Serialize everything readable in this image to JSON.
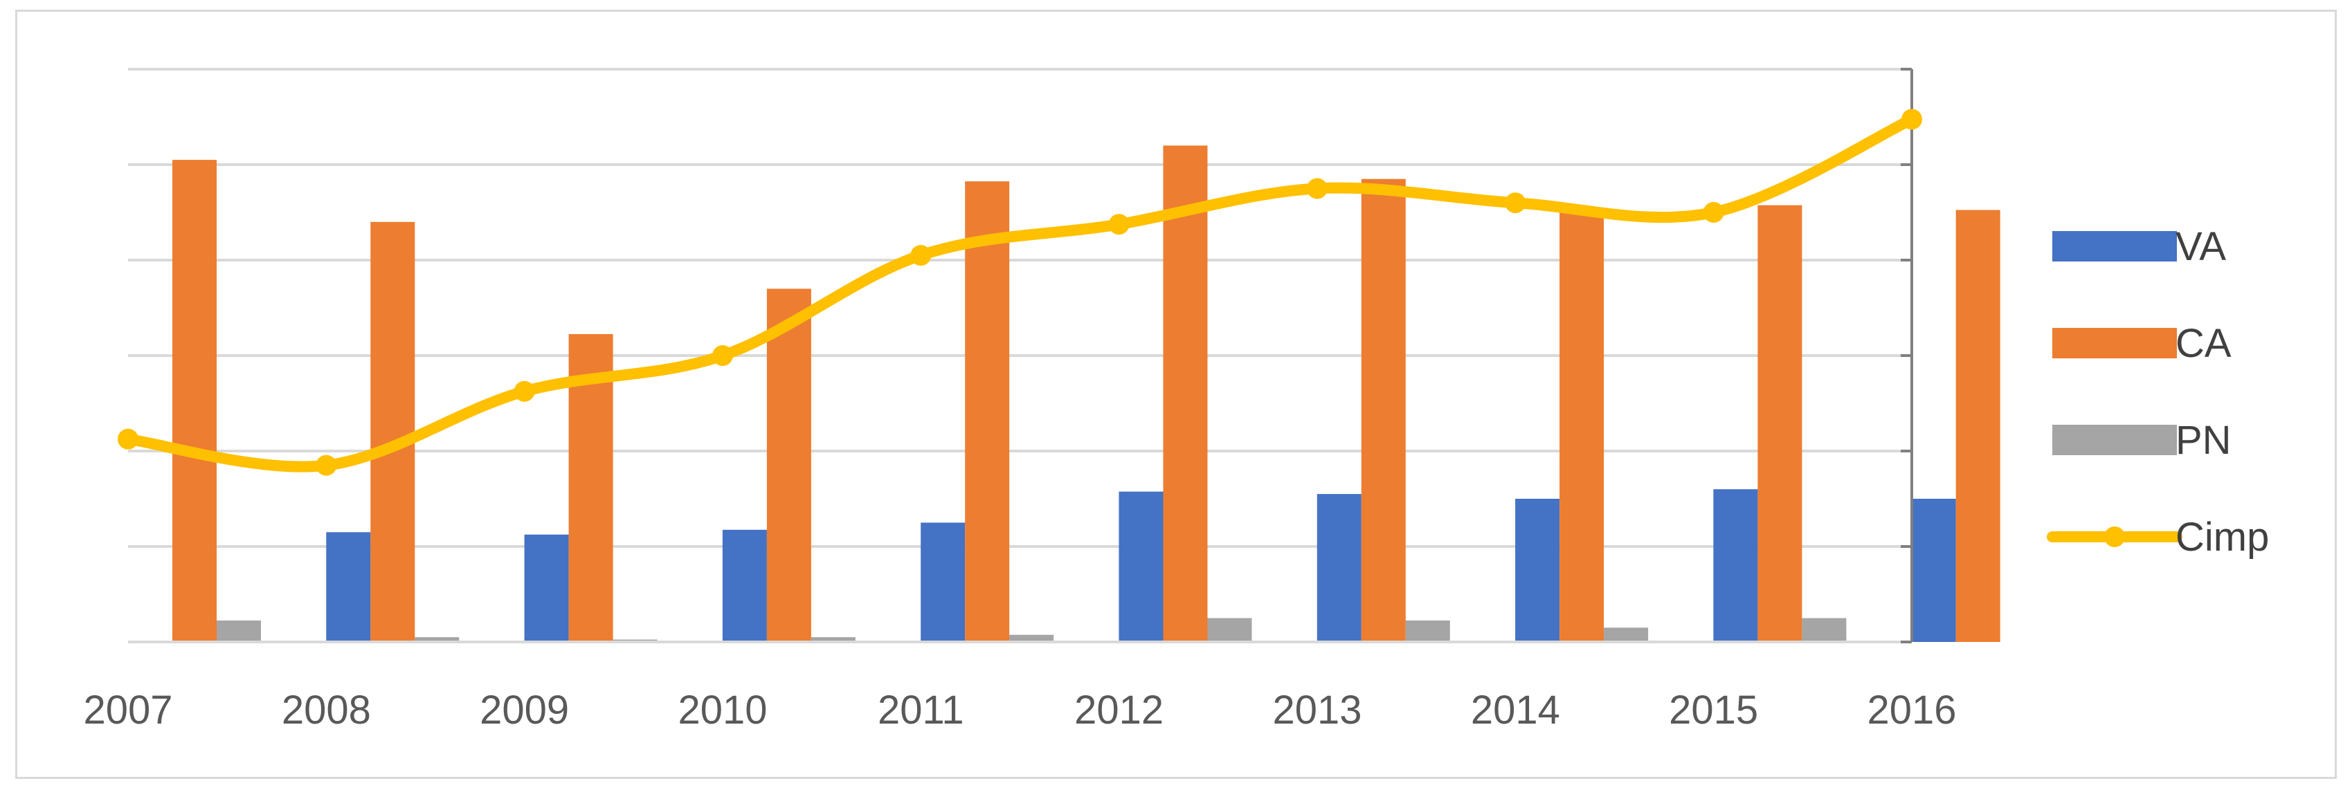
{
  "chart_data": {
    "type": "bar",
    "categories": [
      "2007",
      "2008",
      "2009",
      "2010",
      "2011",
      "2012",
      "2013",
      "2014",
      "2015",
      "2016"
    ],
    "series": [
      {
        "name": "VA",
        "type": "bar",
        "color": "#4472c4",
        "values": [
          0,
          23,
          22.5,
          23.5,
          25,
          31.5,
          31,
          30,
          32,
          30
        ]
      },
      {
        "name": "CA",
        "type": "bar",
        "color": "#ed7d31",
        "values": [
          101,
          88,
          64.5,
          74,
          96.5,
          104,
          97,
          91,
          91.5,
          90.5
        ]
      },
      {
        "name": "PN",
        "type": "bar",
        "color": "#a5a5a5",
        "values": [
          4.5,
          1,
          0.5,
          1,
          1.5,
          5,
          4.5,
          3,
          5,
          0
        ]
      },
      {
        "name": "Cimp",
        "type": "line",
        "color": "#ffc000",
        "values": [
          42.5,
          37,
          52.5,
          60,
          81,
          87.5,
          95,
          92,
          90,
          109.5
        ]
      }
    ],
    "ylim": [
      0,
      120
    ],
    "y_gridlines": [
      20,
      40,
      60,
      80,
      100,
      120
    ],
    "title": "",
    "xlabel": "",
    "ylabel": "",
    "y_tick_labels_shown": false,
    "grid": true,
    "legend_position": "right",
    "line_smoothed": true,
    "gridline_color": "#d9d9d9",
    "axis_color": "#808080"
  }
}
